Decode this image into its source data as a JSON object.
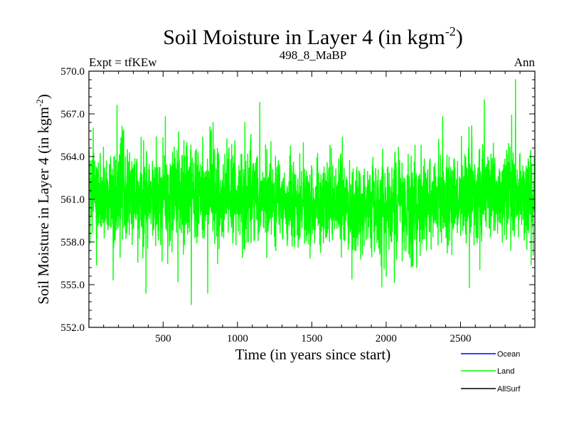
{
  "chart_data": {
    "type": "line",
    "title": "Soil Moisture in Layer 4 (in kgm",
    "title_sup": "-2",
    "title_end": ")",
    "subtitle_left": "Expt = tfKEw",
    "subtitle_center": "498_8_MaBP",
    "subtitle_right": "Ann",
    "xlabel": "Time (in years since start)",
    "ylabel": "Soil Moisture in Layer 4 (in kgm",
    "ylabel_sup": "-2",
    "ylabel_end": ")",
    "xlim": [
      1,
      3000
    ],
    "ylim": [
      552.0,
      570.0
    ],
    "xticks": [
      500,
      1000,
      1500,
      2000,
      2500
    ],
    "yticks": [
      552.0,
      555.0,
      558.0,
      561.0,
      564.0,
      567.0,
      570.0
    ],
    "ytick_labels": [
      "552.0",
      "555.0",
      "558.0",
      "561.0",
      "564.0",
      "567.0",
      "570.0"
    ],
    "grid": false,
    "legend_position": "bottom-right, below plot",
    "series": [
      {
        "name": "Land",
        "color": "#00ff00",
        "n_points": 3000,
        "mean": 561.0,
        "std": 1.6,
        "min": 553.6,
        "max": 569.4,
        "anchors": [
          {
            "x": 1,
            "y": 557.2
          },
          {
            "x": 30,
            "y": 566.0
          },
          {
            "x": 190,
            "y": 567.6
          },
          {
            "x": 385,
            "y": 554.4
          },
          {
            "x": 515,
            "y": 566.8
          },
          {
            "x": 600,
            "y": 555.2
          },
          {
            "x": 690,
            "y": 553.6
          },
          {
            "x": 800,
            "y": 554.4
          },
          {
            "x": 1150,
            "y": 567.8
          },
          {
            "x": 1770,
            "y": 555.4
          },
          {
            "x": 2000,
            "y": 555.6
          },
          {
            "x": 2380,
            "y": 566.8
          },
          {
            "x": 2560,
            "y": 554.8
          },
          {
            "x": 2660,
            "y": 568.0
          },
          {
            "x": 2870,
            "y": 569.4
          },
          {
            "x": 2975,
            "y": 556.4
          },
          {
            "x": 3000,
            "y": 561.0
          }
        ]
      }
    ]
  },
  "legend": [
    {
      "label": "Ocean",
      "color": "#0000ff"
    },
    {
      "label": "Land",
      "color": "#00ff00"
    },
    {
      "label": "AllSurf",
      "color": "#000000"
    }
  ]
}
